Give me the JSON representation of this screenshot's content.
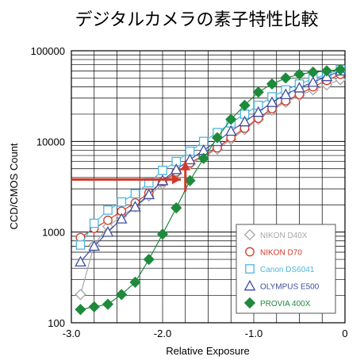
{
  "chart_data": {
    "type": "line",
    "title": "デジタルカメラの素子特性比較",
    "xlabel": "Relative Exposure",
    "ylabel": "CCD/CMOS Count",
    "xlim": [
      -3.0,
      0
    ],
    "ylim": [
      100,
      100000
    ],
    "y_scale": "log",
    "grid": true,
    "legend_position": "bottom-right",
    "x_tick_labels": [
      "-3.0",
      "-2.0",
      "-1.0",
      "0"
    ],
    "x_ticks": [
      -3.0,
      -2.0,
      -1.0,
      0
    ],
    "y_tick_labels": [
      "100",
      "1000",
      "10000",
      "100000"
    ],
    "y_ticks": [
      100,
      1000,
      10000,
      100000
    ],
    "series": [
      {
        "name": "NIKON D40X",
        "color": "#a6a6a6",
        "marker": "diamond-open",
        "x": [
          -2.9,
          -2.75,
          -2.6,
          -2.45,
          -2.3,
          -2.15,
          -2.0,
          -1.85,
          -1.7,
          -1.55,
          -1.4,
          -1.25,
          -1.1,
          -0.95,
          -0.8,
          -0.65,
          -0.5,
          -0.35,
          -0.2,
          -0.05
        ],
        "y": [
          205,
          720,
          1150,
          1500,
          1900,
          2500,
          3400,
          4500,
          5600,
          6800,
          8200,
          10500,
          13500,
          17500,
          22000,
          27000,
          32000,
          37000,
          42000,
          48000
        ]
      },
      {
        "name": "NIKON D70",
        "color": "#d03a2a",
        "marker": "circle-open",
        "x": [
          -2.9,
          -2.75,
          -2.6,
          -2.45,
          -2.3,
          -2.15,
          -2.0,
          -1.85,
          -1.7,
          -1.55,
          -1.4,
          -1.25,
          -1.1,
          -0.95,
          -0.8,
          -0.65,
          -0.5,
          -0.35,
          -0.2,
          -0.05
        ],
        "y": [
          870,
          1100,
          1350,
          1700,
          2100,
          2700,
          3600,
          4600,
          5800,
          7000,
          8500,
          11000,
          14000,
          18000,
          23000,
          28000,
          33000,
          40000,
          47000,
          55000
        ]
      },
      {
        "name": "Canon DS6041",
        "color": "#4bb7e0",
        "marker": "square-open",
        "x": [
          -2.9,
          -2.75,
          -2.6,
          -2.45,
          -2.3,
          -2.15,
          -2.0,
          -1.85,
          -1.7,
          -1.55,
          -1.4,
          -1.25,
          -1.1,
          -0.95,
          -0.8,
          -0.65,
          -0.5,
          -0.35,
          -0.2,
          -0.05
        ],
        "y": [
          720,
          1250,
          1750,
          2150,
          2650,
          3500,
          4800,
          6000,
          7800,
          10000,
          12500,
          16000,
          20000,
          25000,
          31000,
          37000,
          43000,
          49000,
          55000,
          62000
        ]
      },
      {
        "name": "OLYMPUS E500",
        "color": "#3c4da0",
        "marker": "triangle-open",
        "x": [
          -2.9,
          -2.75,
          -2.6,
          -2.45,
          -2.3,
          -2.15,
          -2.0,
          -1.85,
          -1.7,
          -1.55,
          -1.4,
          -1.25,
          -1.1,
          -0.95,
          -0.8,
          -0.65,
          -0.5,
          -0.35,
          -0.2,
          -0.05
        ],
        "y": [
          470,
          700,
          1000,
          1400,
          1900,
          2600,
          3700,
          4900,
          6300,
          8000,
          10000,
          13000,
          16500,
          21000,
          27000,
          33000,
          39000,
          45000,
          52000,
          60000
        ]
      },
      {
        "name": "PROVIA 400X",
        "color": "#1e8a3c",
        "marker": "diamond-filled",
        "x": [
          -2.9,
          -2.75,
          -2.6,
          -2.45,
          -2.3,
          -2.15,
          -2.0,
          -1.85,
          -1.7,
          -1.55,
          -1.4,
          -1.25,
          -1.1,
          -0.95,
          -0.8,
          -0.65,
          -0.5,
          -0.35,
          -0.2,
          -0.05
        ],
        "y": [
          140,
          150,
          160,
          205,
          280,
          500,
          950,
          1850,
          3700,
          6500,
          11000,
          17500,
          25000,
          35000,
          43000,
          50000,
          55000,
          58000,
          60000,
          62000
        ]
      }
    ],
    "annotations": [
      {
        "type": "arrow",
        "color": "#d03a2a",
        "from": [
          -3.0,
          3800
        ],
        "to": [
          -1.8,
          3800
        ]
      },
      {
        "type": "arrow",
        "color": "#d03a2a",
        "from": [
          -1.75,
          2800
        ],
        "to": [
          -1.75,
          6000
        ]
      }
    ]
  }
}
